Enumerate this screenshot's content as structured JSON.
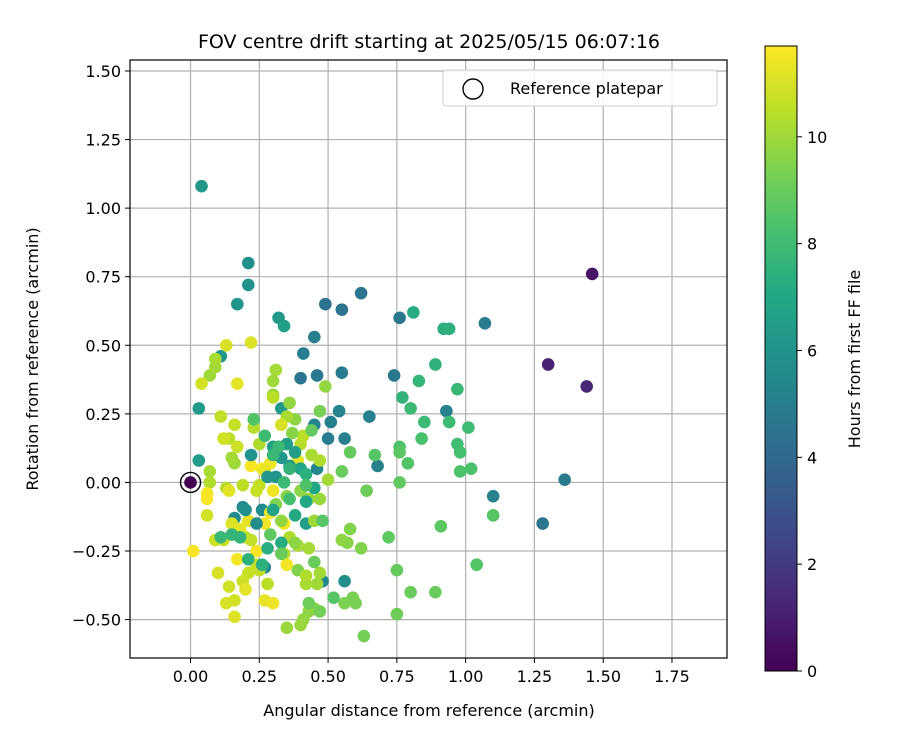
{
  "chart_data": {
    "type": "scatter",
    "title": "FOV centre drift starting at 2025/05/15 06:07:16",
    "xlabel": "Angular distance from reference (arcmin)",
    "ylabel": "Rotation from reference (arcmin)",
    "xlim": [
      -0.22,
      1.95
    ],
    "ylim": [
      -0.64,
      1.54
    ],
    "xticks": [
      0.0,
      0.25,
      0.5,
      0.75,
      1.0,
      1.25,
      1.5,
      1.75
    ],
    "xtick_labels": [
      "0.00",
      "0.25",
      "0.50",
      "0.75",
      "1.00",
      "1.25",
      "1.50",
      "1.75"
    ],
    "yticks": [
      -0.5,
      -0.25,
      0.0,
      0.25,
      0.5,
      0.75,
      1.0,
      1.25,
      1.5
    ],
    "ytick_labels": [
      "−0.50",
      "−0.25",
      "0.00",
      "0.25",
      "0.50",
      "0.75",
      "1.00",
      "1.25",
      "1.50"
    ],
    "grid": true,
    "legend": {
      "placement": "top-right",
      "label": "Reference platepar"
    },
    "reference_point": {
      "x": 0.0,
      "y": 0.0
    },
    "colorbar": {
      "label": "Hours from first FF file",
      "colormap": "viridis",
      "range": [
        0,
        11.7
      ],
      "ticks": [
        0,
        2,
        4,
        6,
        8,
        10
      ],
      "tick_labels": [
        "0",
        "2",
        "4",
        "6",
        "8",
        "10"
      ]
    },
    "points": [
      [
        0.0,
        0.0,
        0.0
      ],
      [
        1.46,
        0.76,
        0.6
      ],
      [
        1.3,
        0.43,
        1.1
      ],
      [
        1.44,
        0.35,
        1.3
      ],
      [
        0.04,
        1.08,
        6.2
      ],
      [
        0.49,
        0.65,
        4.4
      ],
      [
        0.55,
        0.63,
        4.5
      ],
      [
        0.62,
        0.69,
        4.6
      ],
      [
        0.76,
        0.6,
        4.7
      ],
      [
        1.07,
        0.58,
        4.8
      ],
      [
        0.41,
        0.47,
        4.9
      ],
      [
        0.45,
        0.53,
        5.0
      ],
      [
        0.4,
        0.38,
        4.6
      ],
      [
        0.46,
        0.39,
        4.7
      ],
      [
        0.55,
        0.4,
        4.8
      ],
      [
        0.74,
        0.39,
        4.7
      ],
      [
        0.5,
        0.16,
        4.9
      ],
      [
        0.56,
        0.16,
        5.0
      ],
      [
        0.51,
        0.22,
        5.1
      ],
      [
        0.54,
        0.26,
        5.2
      ],
      [
        0.45,
        0.21,
        5.3
      ],
      [
        0.65,
        0.24,
        5.0
      ],
      [
        0.68,
        0.06,
        5.1
      ],
      [
        0.93,
        0.26,
        5.1
      ],
      [
        1.1,
        -0.05,
        5.2
      ],
      [
        1.28,
        -0.15,
        4.6
      ],
      [
        1.36,
        0.01,
        4.8
      ],
      [
        0.56,
        -0.36,
        5.7
      ],
      [
        0.48,
        -0.36,
        5.5
      ],
      [
        0.46,
        0.05,
        5.3
      ],
      [
        0.26,
        -0.1,
        5.6
      ],
      [
        0.19,
        -0.09,
        5.5
      ],
      [
        0.16,
        -0.13,
        5.5
      ],
      [
        0.27,
        -0.31,
        5.6
      ],
      [
        0.21,
        0.8,
        5.8
      ],
      [
        0.21,
        0.72,
        5.9
      ],
      [
        0.17,
        0.65,
        6.0
      ],
      [
        0.32,
        0.6,
        6.2
      ],
      [
        0.34,
        0.57,
        6.6
      ],
      [
        0.11,
        0.46,
        6.1
      ],
      [
        0.03,
        0.27,
        6.3
      ],
      [
        0.03,
        0.08,
        6.4
      ],
      [
        0.33,
        0.27,
        6.3
      ],
      [
        0.42,
        -0.15,
        6.5
      ],
      [
        0.3,
        0.13,
        6.6
      ],
      [
        0.81,
        0.62,
        7.2
      ],
      [
        0.92,
        0.56,
        7.3
      ],
      [
        0.94,
        0.56,
        7.4
      ],
      [
        0.89,
        0.43,
        7.5
      ],
      [
        0.77,
        0.31,
        7.6
      ],
      [
        0.83,
        0.37,
        7.7
      ],
      [
        0.97,
        0.34,
        7.8
      ],
      [
        0.8,
        0.27,
        7.9
      ],
      [
        0.85,
        0.22,
        7.9
      ],
      [
        0.94,
        0.22,
        8.0
      ],
      [
        1.01,
        0.2,
        8.0
      ],
      [
        0.97,
        0.14,
        8.1
      ],
      [
        0.98,
        0.11,
        8.2
      ],
      [
        1.02,
        0.05,
        8.3
      ],
      [
        0.98,
        0.04,
        8.4
      ],
      [
        0.84,
        0.16,
        8.3
      ],
      [
        0.76,
        0.13,
        8.4
      ],
      [
        0.79,
        0.07,
        8.5
      ],
      [
        0.67,
        0.1,
        8.6
      ],
      [
        0.76,
        0.11,
        8.7
      ],
      [
        0.76,
        0.0,
        8.8
      ],
      [
        0.58,
        0.11,
        8.9
      ],
      [
        0.55,
        0.04,
        9.0
      ],
      [
        0.64,
        -0.03,
        9.1
      ],
      [
        1.04,
        -0.3,
        8.5
      ],
      [
        1.1,
        -0.12,
        8.6
      ],
      [
        0.91,
        -0.16,
        8.7
      ],
      [
        0.72,
        -0.2,
        8.8
      ],
      [
        0.75,
        -0.32,
        8.9
      ],
      [
        0.89,
        -0.4,
        9.0
      ],
      [
        0.8,
        -0.4,
        9.0
      ],
      [
        0.75,
        -0.48,
        9.1
      ],
      [
        0.63,
        -0.56,
        9.2
      ],
      [
        0.59,
        -0.42,
        9.3
      ],
      [
        0.6,
        -0.44,
        9.3
      ],
      [
        0.56,
        -0.44,
        9.4
      ],
      [
        0.62,
        -0.24,
        9.5
      ],
      [
        0.58,
        -0.17,
        9.5
      ],
      [
        0.57,
        -0.22,
        9.6
      ],
      [
        0.55,
        -0.21,
        9.7
      ],
      [
        0.45,
        -0.46,
        9.6
      ],
      [
        0.43,
        -0.47,
        9.7
      ],
      [
        0.41,
        -0.5,
        9.8
      ],
      [
        0.4,
        -0.52,
        9.9
      ],
      [
        0.35,
        -0.53,
        9.9
      ],
      [
        0.46,
        -0.37,
        10.0
      ],
      [
        0.47,
        -0.33,
        10.1
      ],
      [
        0.42,
        -0.37,
        10.2
      ],
      [
        0.43,
        -0.24,
        10.1
      ],
      [
        0.39,
        -0.23,
        10.2
      ],
      [
        0.36,
        -0.2,
        10.3
      ],
      [
        0.34,
        -0.26,
        10.4
      ],
      [
        0.28,
        -0.37,
        10.5
      ],
      [
        0.25,
        -0.32,
        10.6
      ],
      [
        0.21,
        -0.33,
        10.7
      ],
      [
        0.19,
        -0.36,
        10.8
      ],
      [
        0.14,
        -0.38,
        10.9
      ],
      [
        0.13,
        -0.44,
        11.0
      ],
      [
        0.16,
        -0.49,
        11.1
      ],
      [
        0.2,
        -0.39,
        11.2
      ],
      [
        0.27,
        -0.43,
        11.3
      ],
      [
        0.3,
        -0.44,
        11.4
      ],
      [
        0.35,
        -0.3,
        11.5
      ],
      [
        0.17,
        -0.28,
        11.5
      ],
      [
        0.24,
        -0.25,
        11.6
      ],
      [
        0.2,
        -0.2,
        10.5
      ],
      [
        0.22,
        -0.21,
        10.6
      ],
      [
        0.12,
        -0.21,
        10.7
      ],
      [
        0.09,
        -0.21,
        10.8
      ],
      [
        0.06,
        -0.12,
        10.9
      ],
      [
        0.1,
        -0.33,
        11.0
      ],
      [
        0.15,
        -0.15,
        11.1
      ],
      [
        0.18,
        -0.17,
        11.2
      ],
      [
        0.21,
        -0.14,
        11.3
      ],
      [
        0.27,
        -0.15,
        11.4
      ],
      [
        0.29,
        -0.11,
        11.5
      ],
      [
        0.34,
        -0.15,
        11.6
      ],
      [
        0.31,
        -0.08,
        9.5
      ],
      [
        0.35,
        -0.05,
        9.6
      ],
      [
        0.4,
        -0.03,
        9.7
      ],
      [
        0.43,
        -0.06,
        9.8
      ],
      [
        0.47,
        -0.06,
        9.9
      ],
      [
        0.45,
        -0.14,
        10.0
      ],
      [
        0.5,
        0.01,
        10.1
      ],
      [
        0.44,
        0.1,
        10.2
      ],
      [
        0.47,
        0.08,
        10.3
      ],
      [
        0.4,
        0.14,
        10.4
      ],
      [
        0.41,
        0.17,
        10.5
      ],
      [
        0.37,
        0.18,
        9.6
      ],
      [
        0.38,
        0.23,
        9.7
      ],
      [
        0.36,
        0.29,
        9.8
      ],
      [
        0.3,
        0.32,
        9.9
      ],
      [
        0.3,
        0.37,
        10.0
      ],
      [
        0.31,
        0.41,
        10.1
      ],
      [
        0.35,
        0.24,
        10.2
      ],
      [
        0.33,
        0.21,
        11.0
      ],
      [
        0.25,
        0.14,
        10.3
      ],
      [
        0.23,
        0.2,
        10.4
      ],
      [
        0.14,
        0.16,
        10.5
      ],
      [
        0.11,
        0.24,
        10.6
      ],
      [
        0.16,
        0.21,
        10.7
      ],
      [
        0.17,
        0.13,
        10.8
      ],
      [
        0.12,
        0.16,
        10.9
      ],
      [
        0.07,
        0.39,
        10.0
      ],
      [
        0.09,
        0.42,
        10.1
      ],
      [
        0.09,
        0.45,
        10.2
      ],
      [
        0.04,
        0.36,
        10.9
      ],
      [
        0.13,
        0.5,
        11.0
      ],
      [
        0.22,
        0.51,
        11.1
      ],
      [
        0.17,
        0.36,
        11.2
      ],
      [
        0.3,
        0.31,
        10.5
      ],
      [
        0.39,
        0.08,
        11.3
      ],
      [
        0.29,
        0.07,
        11.4
      ],
      [
        0.26,
        0.05,
        11.5
      ],
      [
        0.22,
        0.06,
        11.6
      ],
      [
        0.16,
        0.07,
        10.0
      ],
      [
        0.15,
        0.09,
        10.1
      ],
      [
        0.07,
        0.04,
        10.2
      ],
      [
        0.07,
        0.0,
        10.3
      ],
      [
        0.13,
        -0.02,
        10.4
      ],
      [
        0.14,
        -0.03,
        11.2
      ],
      [
        0.19,
        -0.01,
        10.5
      ],
      [
        0.25,
        -0.01,
        10.6
      ],
      [
        0.27,
        0.04,
        11.3
      ],
      [
        0.3,
        -0.03,
        11.4
      ],
      [
        0.24,
        -0.03,
        10.7
      ],
      [
        0.06,
        -0.04,
        11.5
      ],
      [
        0.06,
        -0.06,
        11.6
      ],
      [
        0.01,
        -0.25,
        11.6
      ],
      [
        0.24,
        -0.3,
        10.8
      ],
      [
        0.16,
        -0.43,
        10.9
      ],
      [
        0.33,
        -0.14,
        9.8
      ],
      [
        0.38,
        -0.22,
        9.7
      ],
      [
        0.45,
        -0.29,
        9.0
      ],
      [
        0.47,
        -0.47,
        9.2
      ],
      [
        0.43,
        -0.44,
        9.1
      ],
      [
        0.52,
        -0.42,
        8.6
      ],
      [
        0.39,
        -0.32,
        9.5
      ],
      [
        0.42,
        -0.34,
        10.3
      ],
      [
        0.31,
        0.02,
        6.0
      ],
      [
        0.33,
        0.09,
        6.1
      ],
      [
        0.36,
        0.06,
        6.3
      ],
      [
        0.38,
        0.11,
        6.5
      ],
      [
        0.35,
        0.14,
        6.6
      ],
      [
        0.4,
        0.05,
        6.8
      ],
      [
        0.45,
        -0.02,
        6.9
      ],
      [
        0.42,
        -0.07,
        7.0
      ],
      [
        0.38,
        -0.12,
        7.1
      ],
      [
        0.33,
        -0.22,
        7.2
      ],
      [
        0.28,
        -0.24,
        7.3
      ],
      [
        0.26,
        -0.3,
        7.4
      ],
      [
        0.21,
        -0.28,
        7.5
      ],
      [
        0.18,
        -0.2,
        7.6
      ],
      [
        0.15,
        -0.19,
        7.7
      ],
      [
        0.11,
        -0.2,
        7.8
      ],
      [
        0.22,
        0.1,
        5.9
      ],
      [
        0.28,
        0.02,
        6.2
      ],
      [
        0.2,
        -0.1,
        5.8
      ],
      [
        0.24,
        -0.15,
        5.7
      ],
      [
        0.3,
        -0.1,
        6.7
      ],
      [
        0.34,
        0.0,
        7.9
      ],
      [
        0.32,
        0.13,
        7.9
      ],
      [
        0.27,
        0.17,
        8.0
      ],
      [
        0.23,
        0.23,
        8.5
      ],
      [
        0.44,
        0.19,
        8.9
      ],
      [
        0.47,
        0.26,
        9.3
      ],
      [
        0.49,
        0.35,
        9.8
      ],
      [
        0.42,
        0.03,
        7.4
      ],
      [
        0.36,
        0.05,
        7.6
      ],
      [
        0.3,
        0.1,
        7.8
      ],
      [
        0.36,
        -0.06,
        8.2
      ],
      [
        0.42,
        -0.01,
        8.4
      ],
      [
        0.48,
        -0.14,
        8.6
      ],
      [
        0.29,
        -0.19,
        8.8
      ],
      [
        0.33,
        -0.26,
        9.0
      ]
    ]
  }
}
